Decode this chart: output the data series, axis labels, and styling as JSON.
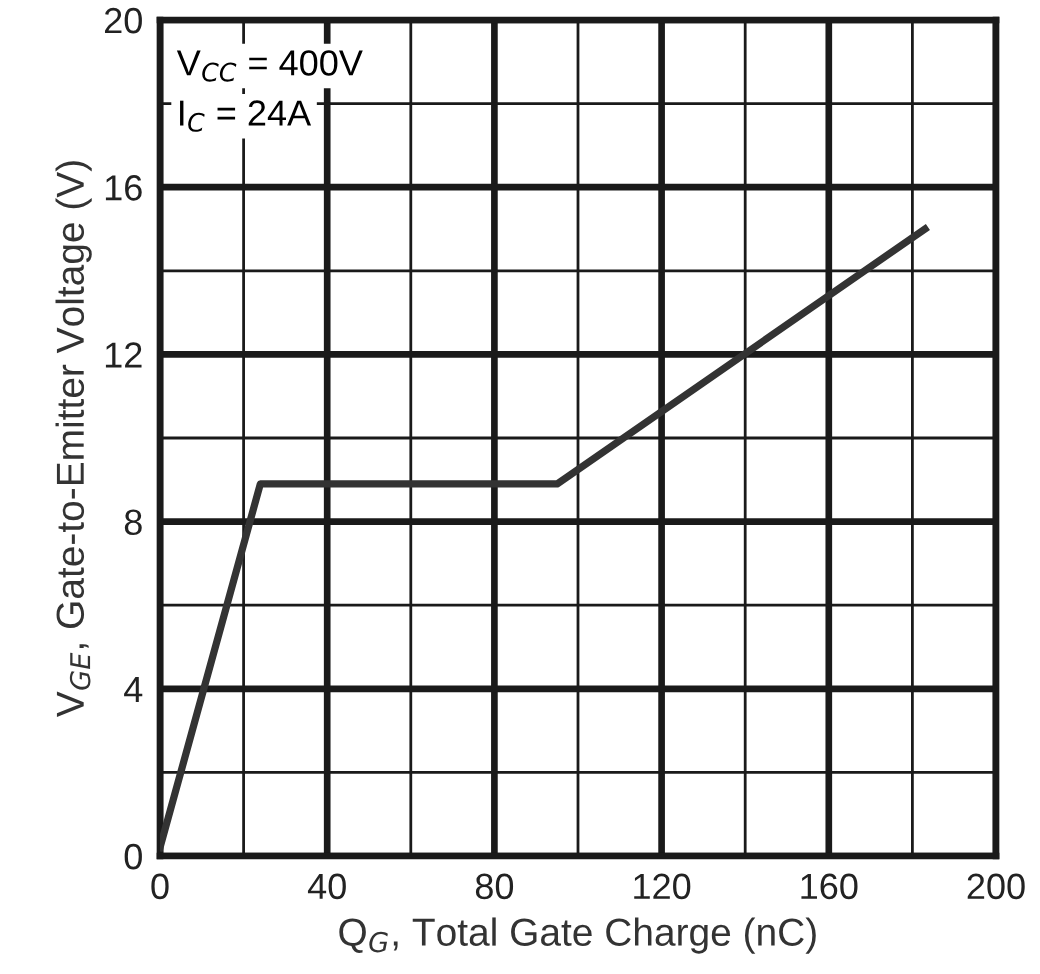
{
  "chart_data": {
    "type": "line",
    "xlabel": "Q$_{G}$, Total Gate Charge (nC)",
    "ylabel": "V$_{GE}$, Gate-to-Emitter Voltage (V)",
    "x": [
      0,
      24,
      95,
      183
    ],
    "series": [
      {
        "color": "#333333",
        "values": [
          0.2,
          8.9,
          8.9,
          15.0
        ]
      }
    ],
    "xlim": [
      0,
      200
    ],
    "ylim": [
      0,
      20
    ],
    "xticks": [
      0,
      {
        "value": 20,
        "label": null
      },
      40,
      {
        "value": 60,
        "label": null
      },
      80,
      {
        "value": 100,
        "label": null
      },
      120,
      {
        "value": 140,
        "label": null
      },
      160,
      {
        "value": 180,
        "label": null
      },
      200
    ],
    "yticks": [
      0,
      {
        "value": 2,
        "label": null
      },
      4,
      {
        "value": 6,
        "label": null
      },
      8,
      {
        "value": 10,
        "label": null
      },
      12,
      {
        "value": 14,
        "label": null
      },
      16,
      {
        "value": 18,
        "label": null
      },
      20
    ],
    "grid": true,
    "marker": "none",
    "line_style": "solid",
    "annotations": [
      "V$_{CC}$ = 400V",
      "I$_{C}$ = 24A"
    ]
  }
}
